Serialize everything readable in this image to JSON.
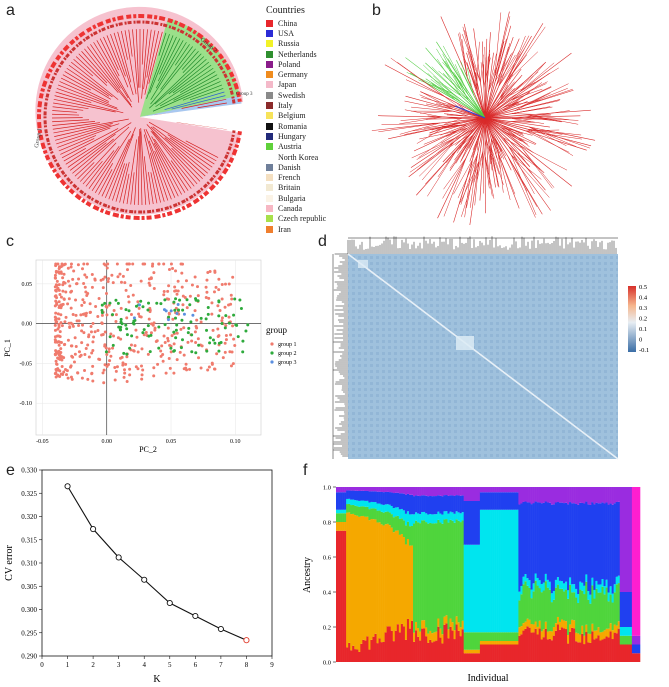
{
  "panels": {
    "a": {
      "label": "a",
      "legend_title": "Countries",
      "group_labels": [
        "Group 1",
        "Group 2",
        "Group 3"
      ],
      "legend": [
        {
          "name": "China",
          "color": "#e8262b"
        },
        {
          "name": "USA",
          "color": "#2b2bd6"
        },
        {
          "name": "Russia",
          "color": "#f2f227"
        },
        {
          "name": "Netherlands",
          "color": "#2f8f2f"
        },
        {
          "name": "Poland",
          "color": "#8a1c8a"
        },
        {
          "name": "Germany",
          "color": "#f08c1e"
        },
        {
          "name": "Japan",
          "color": "#f4b9c9"
        },
        {
          "name": "Swedish",
          "color": "#8a8a8a"
        },
        {
          "name": "Italy",
          "color": "#8b2a2a"
        },
        {
          "name": "Belgium",
          "color": "#f7e35a"
        },
        {
          "name": "Romania",
          "color": "#111111"
        },
        {
          "name": "Hungary",
          "color": "#222a7a"
        },
        {
          "name": "Austria",
          "color": "#5fd13a"
        },
        {
          "name": "North Korea",
          "color": "#ffffff"
        },
        {
          "name": "Danish",
          "color": "#6f7f9a"
        },
        {
          "name": "French",
          "color": "#f4dfc0"
        },
        {
          "name": "Britain",
          "color": "#f2e9d2"
        },
        {
          "name": "Bulgaria",
          "color": "#fbf3e6"
        },
        {
          "name": "Canada",
          "color": "#f7b7c3"
        },
        {
          "name": "Czech republic",
          "color": "#a8e04a"
        },
        {
          "name": "Iran",
          "color": "#f07f2e"
        }
      ]
    },
    "b": {
      "label": "b"
    },
    "c": {
      "label": "c"
    },
    "d": {
      "label": "d"
    },
    "e": {
      "label": "e"
    },
    "f": {
      "label": "f"
    }
  },
  "chart_data": [
    {
      "panel": "c",
      "type": "scatter",
      "xlabel": "PC_2",
      "ylabel": "PC_1",
      "xticks": [
        "-0.05",
        "0.00",
        "0.05",
        "0.10"
      ],
      "yticks": [
        "0.05",
        "0.00",
        "-0.05",
        "-0.10"
      ],
      "xlim": [
        -0.055,
        0.12
      ],
      "ylim": [
        -0.14,
        0.08
      ],
      "legend_title": "group",
      "series": [
        {
          "name": "group 1",
          "color": "#f07b6d"
        },
        {
          "name": "group 2",
          "color": "#2eaa3c"
        },
        {
          "name": "group 3",
          "color": "#5a8fe0"
        }
      ]
    },
    {
      "panel": "d",
      "type": "heatmap",
      "colorbar_ticks": [
        "0.5",
        "0.4",
        "0.3",
        "0.2",
        "0.1",
        "0",
        "-0.1"
      ]
    },
    {
      "panel": "e",
      "type": "line",
      "xlabel": "K",
      "ylabel": "CV error",
      "x": [
        1,
        2,
        3,
        4,
        5,
        6,
        7,
        8
      ],
      "y": [
        0.3265,
        0.3173,
        0.3112,
        0.3064,
        0.3014,
        0.2986,
        0.2958,
        0.2934
      ],
      "xticks": [
        "0",
        "1",
        "2",
        "3",
        "4",
        "5",
        "6",
        "7",
        "8",
        "9"
      ],
      "yticks": [
        "0.330",
        "0.325",
        "0.320",
        "0.315",
        "0.310",
        "0.305",
        "0.300",
        "0.295",
        "0.290"
      ],
      "xlim": [
        0,
        9
      ],
      "ylim": [
        0.29,
        0.33
      ],
      "highlight_point": 8
    },
    {
      "panel": "f",
      "type": "area",
      "xlabel": "Individual",
      "ylabel": "Ancestry",
      "yticks": [
        "1.0",
        "0.8",
        "0.6",
        "0.4",
        "0.2",
        "0.0"
      ],
      "ylim": [
        0,
        1
      ],
      "colors": [
        "#e8262b",
        "#f5a800",
        "#4fd53c",
        "#00e5ef",
        "#2040f0",
        "#9a2ce0",
        "#ff1fd0"
      ]
    }
  ]
}
